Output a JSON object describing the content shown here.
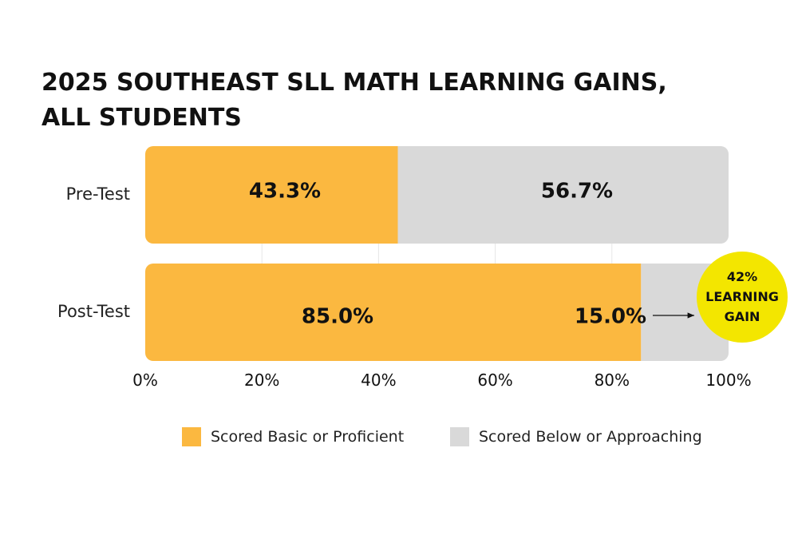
{
  "chart_data": {
    "type": "bar",
    "orientation": "horizontal",
    "stacked": true,
    "title_lines": [
      "2025 SOUTHEAST SLL MATH LEARNING GAINS,",
      "ALL STUDENTS"
    ],
    "categories": [
      "Pre-Test",
      "Post-Test"
    ],
    "series": [
      {
        "name": "Scored Basic or Proficient",
        "values": [
          43.3,
          85.0
        ],
        "labels": [
          "43.3%",
          "85.0%"
        ],
        "color": "#FBB840"
      },
      {
        "name": "Scored Below or Approaching",
        "values": [
          56.7,
          15.0
        ],
        "labels": [
          "56.7%",
          "15.0%"
        ],
        "color": "#D9D9D9"
      }
    ],
    "xlim": [
      0,
      100
    ],
    "xticks": [
      0,
      20,
      40,
      60,
      80,
      100
    ],
    "xtick_labels": [
      "0%",
      "20%",
      "40%",
      "60%",
      "80%",
      "100%"
    ],
    "grid": true,
    "legend_position": "bottom",
    "annotation": {
      "lines": [
        "42%",
        "LEARNING",
        "GAIN"
      ],
      "color": "#F3E600",
      "points_to": "Post-Test"
    }
  }
}
